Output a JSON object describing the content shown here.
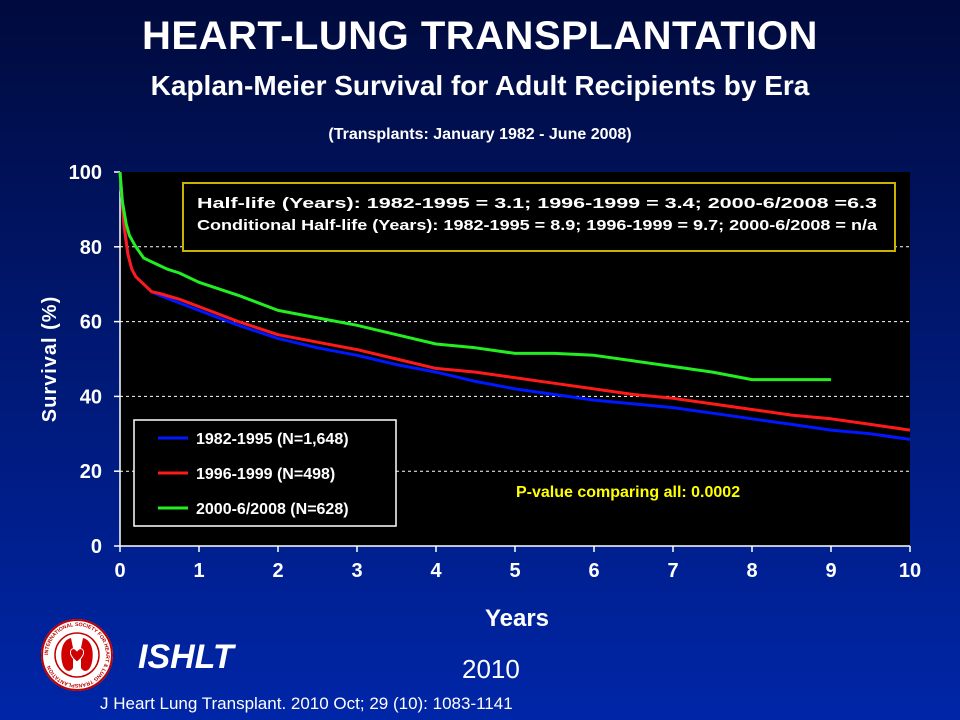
{
  "header": {
    "title": "HEART-LUNG TRANSPLANTATION",
    "subtitle": "Kaplan-Meier Survival for Adult Recipients by Era",
    "caption": "(Transplants: January 1982 - June 2008)"
  },
  "chart_data": {
    "type": "line",
    "xlabel": "Years",
    "ylabel": "Survival (%)",
    "xlim": [
      0,
      10
    ],
    "ylim": [
      0,
      100
    ],
    "xticks": [
      "0",
      "1",
      "2",
      "3",
      "4",
      "5",
      "6",
      "7",
      "8",
      "9",
      "10"
    ],
    "yticks": [
      "0",
      "20",
      "40",
      "60",
      "80",
      "100"
    ],
    "grid": "horizontal dashed at 20, 40, 60, 80",
    "legend_position": "bottom-left",
    "info_box": [
      "Half-life (Years): 1982-1995 = 3.1; 1996-1999 = 3.4; 2000-6/2008 =6.3",
      "Conditional Half-life (Years): 1982-1995 = 8.9; 1996-1999 = 9.7; 2000-6/2008 = n/a"
    ],
    "annotation": "P-value comparing all:  0.0002",
    "colors": {
      "plot_bg": "#000000",
      "info_border": "#c8b400",
      "annotation": "#ffff00"
    },
    "series": [
      {
        "name": "1982-1995 (N=1,648)",
        "color": "#0018ff",
        "x": [
          0,
          0.05,
          0.1,
          0.15,
          0.2,
          0.3,
          0.4,
          0.5,
          0.75,
          1,
          1.5,
          2,
          2.5,
          3,
          3.5,
          4,
          4.5,
          5,
          5.5,
          6,
          6.5,
          7,
          7.5,
          8,
          8.5,
          9,
          9.5,
          10
        ],
        "y": [
          100,
          85,
          78,
          74,
          72,
          70,
          68,
          67,
          65,
          63,
          59,
          55.5,
          53,
          51,
          48.5,
          46.5,
          44,
          42,
          40.5,
          39,
          38,
          37,
          35.5,
          34,
          32.5,
          31,
          30,
          28.5
        ]
      },
      {
        "name": "1996-1999 (N=498)",
        "color": "#ff1a1a",
        "x": [
          0,
          0.05,
          0.1,
          0.15,
          0.2,
          0.3,
          0.4,
          0.5,
          0.75,
          1,
          1.5,
          2,
          2.5,
          3,
          3.5,
          4,
          4.5,
          5,
          5.5,
          6,
          6.5,
          7,
          7.5,
          8,
          8.5,
          9,
          9.5,
          10
        ],
        "y": [
          100,
          86,
          78,
          74,
          72,
          70,
          68,
          67.5,
          66,
          64,
          60,
          56.5,
          54.5,
          52.5,
          50,
          47.5,
          46.5,
          45,
          43.5,
          42,
          40.5,
          39.5,
          38,
          36.5,
          35,
          34,
          32.5,
          31
        ]
      },
      {
        "name": "2000-6/2008 (N=628)",
        "color": "#22ee22",
        "x": [
          0,
          0.03,
          0.08,
          0.12,
          0.2,
          0.3,
          0.4,
          0.5,
          0.6,
          0.75,
          1,
          1.5,
          2,
          2.5,
          3,
          3.5,
          4,
          4.5,
          5,
          5.5,
          6,
          6.5,
          7,
          7.5,
          8,
          8.5,
          9
        ],
        "y": [
          100,
          92,
          86,
          83,
          80,
          77,
          76,
          75,
          74,
          73,
          70.5,
          67,
          63,
          61,
          59,
          56.5,
          54,
          53,
          51.5,
          51.5,
          51,
          49.5,
          48,
          46.5,
          44.5,
          44.5,
          44.5
        ]
      }
    ]
  },
  "footer": {
    "logo_text": "INTERNATIONAL SOCIETY FOR HEART & LUNG TRANSPLANTATION",
    "org": "ISHLT",
    "year": "2010",
    "citation": "J Heart Lung Transplant. 2010 Oct; 29 (10): 1083-1141"
  }
}
